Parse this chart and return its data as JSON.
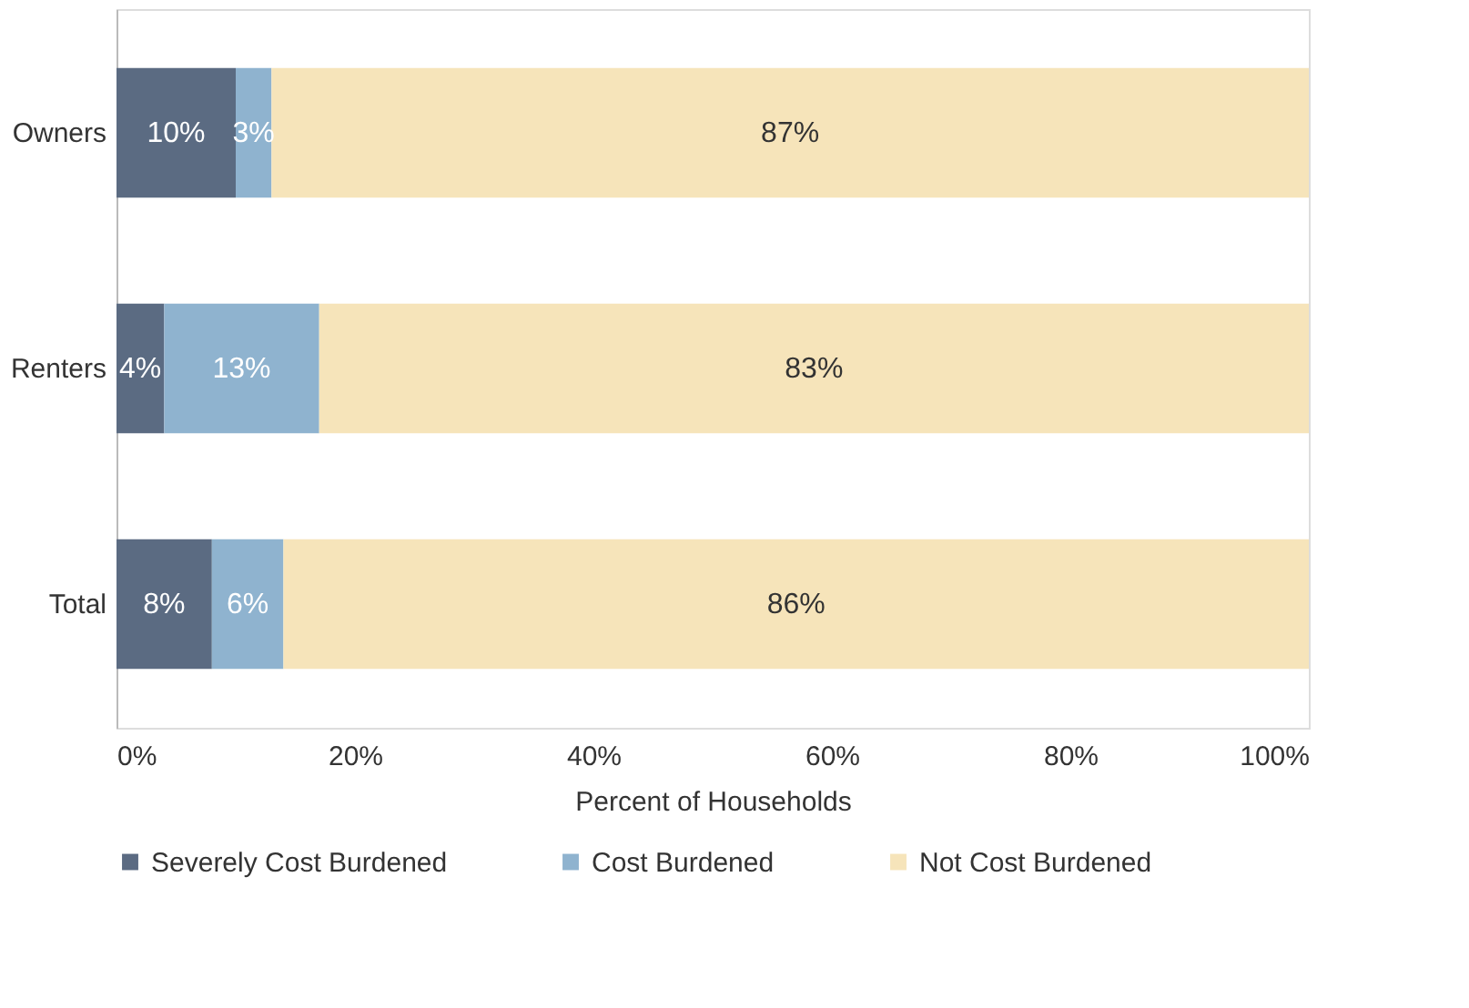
{
  "chart_data": {
    "type": "bar",
    "orientation": "horizontal",
    "stacked": true,
    "xlabel": "Percent of Households",
    "categories": [
      "Owners",
      "Renters",
      "Total"
    ],
    "series": [
      {
        "name": "Severely Cost Burdened",
        "color": "#5b6b82",
        "values": [
          10,
          4,
          8
        ],
        "value_labels": [
          "10%",
          "4%",
          "8%"
        ]
      },
      {
        "name": "Cost Burdened",
        "color": "#8fb3cf",
        "values": [
          3,
          13,
          6
        ],
        "value_labels": [
          "3%",
          "13%",
          "6%"
        ]
      },
      {
        "name": "Not Cost Burdened",
        "color": "#f6e4ba",
        "values": [
          87,
          83,
          86
        ],
        "value_labels": [
          "87%",
          "83%",
          "86%"
        ]
      }
    ],
    "xlim": [
      0,
      100
    ],
    "xticks": [
      {
        "value": 0,
        "label": "0%"
      },
      {
        "value": 20,
        "label": "20%"
      },
      {
        "value": 40,
        "label": "40%"
      },
      {
        "value": 60,
        "label": "60%"
      },
      {
        "value": 80,
        "label": "80%"
      },
      {
        "value": 100,
        "label": "100%"
      }
    ],
    "grid": false,
    "legend": "bottom"
  }
}
